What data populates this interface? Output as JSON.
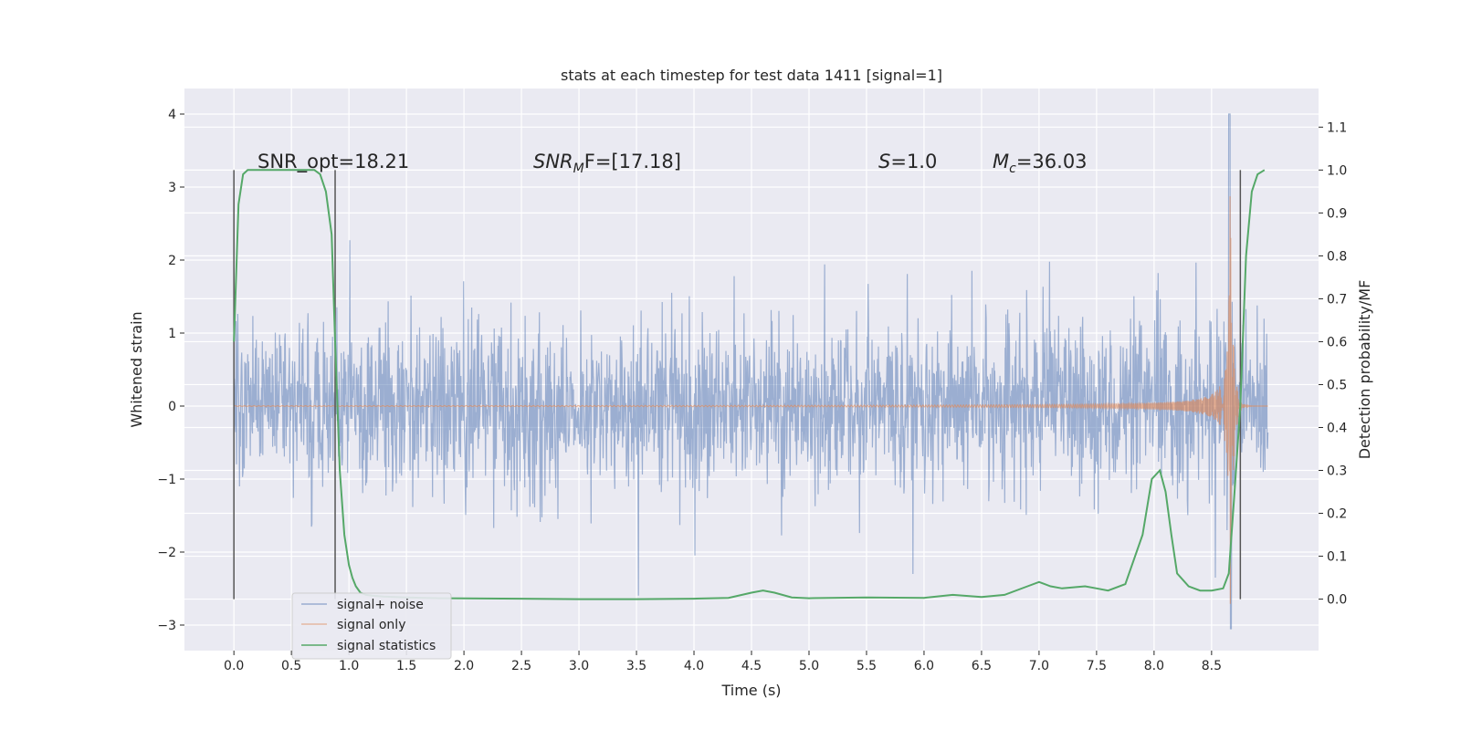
{
  "chart_data": {
    "type": "line",
    "title": "stats at each timestep for test data 1411 [signal=1]",
    "xlabel": "Time (s)",
    "ylabel": "Whitened strain",
    "y2label": "Detection probability/MF",
    "xlim": [
      -0.43,
      9.43
    ],
    "ylim": [
      -3.35,
      4.35
    ],
    "y2lim": [
      -0.12,
      1.19
    ],
    "xticks": [
      0.0,
      0.5,
      1.0,
      1.5,
      2.0,
      2.5,
      3.0,
      3.5,
      4.0,
      4.5,
      5.0,
      5.5,
      6.0,
      6.5,
      7.0,
      7.5,
      8.0,
      8.5
    ],
    "xtick_labels": [
      "0.0",
      "0.5",
      "1.0",
      "1.5",
      "2.0",
      "2.5",
      "3.0",
      "3.5",
      "4.0",
      "4.5",
      "5.0",
      "5.5",
      "6.0",
      "6.5",
      "7.0",
      "7.5",
      "8.0",
      "8.5"
    ],
    "yticks": [
      4,
      3,
      2,
      1,
      0,
      -1,
      -2,
      -3
    ],
    "ytick_labels": [
      "4",
      "3",
      "2",
      "1",
      "0",
      "−1",
      "−2",
      "−3"
    ],
    "y2ticks": [
      1.1,
      1.0,
      0.9,
      0.8,
      0.7,
      0.6,
      0.5,
      0.4,
      0.3,
      0.2,
      0.1,
      0.0
    ],
    "y2tick_labels": [
      "1.1",
      "1.0",
      "0.9",
      "0.8",
      "0.7",
      "0.6",
      "0.5",
      "0.4",
      "0.3",
      "0.2",
      "0.1",
      "0.0"
    ],
    "grid": true,
    "legend_position": "lower-left",
    "annotations": {
      "snr_opt": "SNR_opt=18.21",
      "snr_mf_main": "SNR",
      "snr_mf_sub": "M",
      "snr_mf_tail": "F=[17.18]",
      "s_main": "S",
      "s_tail": "=1.0",
      "mc_main": "M",
      "mc_sub": "c",
      "mc_tail": "=36.03"
    },
    "vertical_markers_s": [
      0.0,
      0.88,
      8.75
    ],
    "series": [
      {
        "name": "signal+ noise",
        "color": "#4c72b0",
        "description_range": {
          "t_start": 0.0,
          "t_end": 8.99,
          "typical_amplitude": 1.05,
          "peak_max": 4.0,
          "peak_min": -3.05
        }
      },
      {
        "name": "signal only",
        "color": "#dd8452",
        "chirp": {
          "t_start": 0.0,
          "t_merger": 8.66,
          "t_end": 8.99,
          "peak_amplitude": 3.1
        }
      },
      {
        "name": "signal statistics",
        "color": "#55a868",
        "x": [
          0.0,
          0.04,
          0.08,
          0.12,
          0.18,
          0.3,
          0.5,
          0.6,
          0.7,
          0.75,
          0.8,
          0.85,
          0.88,
          0.92,
          0.96,
          1.0,
          1.03,
          1.06,
          1.1,
          1.15,
          1.2,
          1.3,
          1.5,
          1.8,
          2.5,
          3.0,
          3.5,
          4.0,
          4.3,
          4.5,
          4.6,
          4.7,
          4.85,
          5.0,
          5.5,
          6.0,
          6.25,
          6.5,
          6.7,
          6.9,
          7.0,
          7.1,
          7.2,
          7.4,
          7.5,
          7.6,
          7.75,
          7.9,
          7.98,
          8.05,
          8.1,
          8.15,
          8.2,
          8.3,
          8.4,
          8.5,
          8.6,
          8.65,
          8.7,
          8.75,
          8.8,
          8.85,
          8.9,
          8.96
        ],
        "y": [
          0.6,
          0.92,
          0.99,
          1.0,
          1.0,
          1.0,
          1.0,
          1.0,
          1.0,
          0.99,
          0.95,
          0.85,
          0.6,
          0.3,
          0.15,
          0.08,
          0.05,
          0.03,
          0.015,
          0.01,
          0.008,
          0.006,
          0.004,
          0.002,
          0.001,
          0.0,
          0.0,
          0.001,
          0.003,
          0.015,
          0.02,
          0.015,
          0.004,
          0.002,
          0.004,
          0.003,
          0.01,
          0.005,
          0.01,
          0.03,
          0.04,
          0.03,
          0.025,
          0.03,
          0.025,
          0.02,
          0.035,
          0.15,
          0.28,
          0.3,
          0.25,
          0.15,
          0.06,
          0.03,
          0.02,
          0.02,
          0.025,
          0.06,
          0.25,
          0.45,
          0.8,
          0.95,
          0.99,
          1.0
        ]
      }
    ]
  }
}
